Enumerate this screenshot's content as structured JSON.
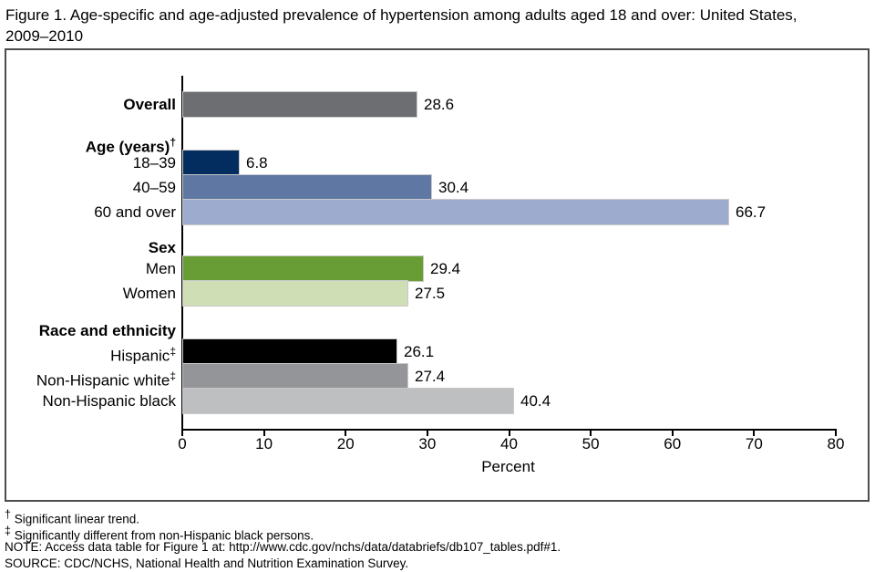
{
  "title": {
    "line1": "Figure 1. Age-specific and age-adjusted prevalence of hypertension among adults aged 18 and over: United States,",
    "line2": "2009–2010"
  },
  "chart_data": {
    "type": "bar",
    "orientation": "horizontal",
    "xlabel": "Percent",
    "xlim": [
      0,
      80
    ],
    "xticks": [
      0,
      10,
      20,
      30,
      40,
      50,
      60,
      70,
      80
    ],
    "grid": false,
    "axis_color": "#000000",
    "groups": [
      {
        "header": null,
        "items": [
          {
            "label": "Overall",
            "sup": "",
            "bold": true,
            "value": 28.6,
            "color": "#6d6e71"
          }
        ]
      },
      {
        "header": {
          "text": "Age (years)",
          "sup": "†"
        },
        "items": [
          {
            "label": "18–39",
            "sup": "",
            "bold": false,
            "value": 6.8,
            "color": "#042d5f"
          },
          {
            "label": "40–59",
            "sup": "",
            "bold": false,
            "value": 30.4,
            "color": "#5f77a3"
          },
          {
            "label": "60 and over",
            "sup": "",
            "bold": false,
            "value": 66.7,
            "color": "#9cabce"
          }
        ]
      },
      {
        "header": {
          "text": "Sex",
          "sup": ""
        },
        "items": [
          {
            "label": "Men",
            "sup": "",
            "bold": false,
            "value": 29.4,
            "color": "#689c35"
          },
          {
            "label": "Women",
            "sup": "",
            "bold": false,
            "value": 27.5,
            "color": "#cfdeb5"
          }
        ]
      },
      {
        "header": {
          "text": "Race and ethnicity",
          "sup": ""
        },
        "items": [
          {
            "label": "Hispanic",
            "sup": "‡",
            "bold": false,
            "value": 26.1,
            "color": "#000000"
          },
          {
            "label": "Non-Hispanic white",
            "sup": "‡",
            "bold": false,
            "value": 27.4,
            "color": "#939598"
          },
          {
            "label": "Non-Hispanic black",
            "sup": "",
            "bold": false,
            "value": 40.4,
            "color": "#bdbfc1"
          }
        ]
      }
    ]
  },
  "footnotes": [
    {
      "sup": "†",
      "text": "Significant linear trend."
    },
    {
      "sup": "‡",
      "text": "Significantly different from non-Hispanic black persons."
    },
    {
      "sup": "",
      "text": "NOTE: Access data table for Figure 1 at: http://www.cdc.gov/nchs/data/databriefs/db107_tables.pdf#1."
    },
    {
      "sup": "",
      "text": "SOURCE: CDC/NCHS, National Health and Nutrition Examination Survey."
    }
  ]
}
